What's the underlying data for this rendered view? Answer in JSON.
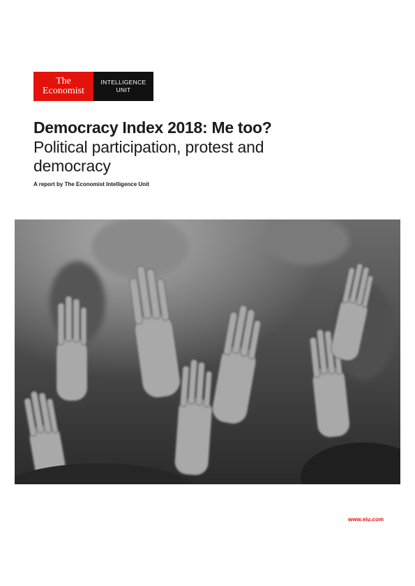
{
  "logo": {
    "brand_line1": "The",
    "brand_line2": "Economist",
    "unit_line1": "INTELLIGENCE",
    "unit_line2": "UNIT"
  },
  "cover": {
    "title": "Democracy Index 2018: Me too?",
    "subtitle": "Political participation, protest and democracy",
    "byline": "A report by The Economist Intelligence Unit"
  },
  "footer": {
    "url": "www.eiu.com"
  },
  "colors": {
    "brand_red": "#e3120b",
    "text": "#1a1a1a"
  },
  "image": {
    "subject": "raised-hands-crowd-photo"
  }
}
